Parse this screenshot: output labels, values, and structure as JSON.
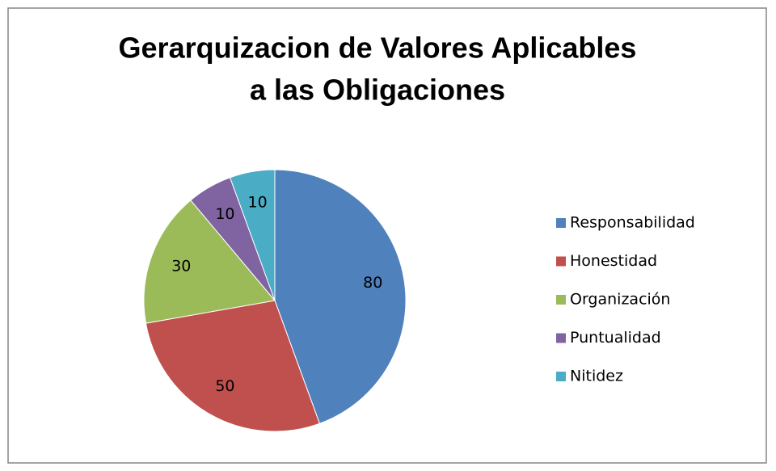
{
  "chart_data": {
    "type": "pie",
    "title": [
      "Gerarquizacion de Valores Aplicables",
      "a las Obligaciones"
    ],
    "categories": [
      "Responsabilidad",
      "Honestidad",
      "Organización",
      "Puntualidad",
      "Nitidez"
    ],
    "values": [
      80,
      50,
      30,
      10,
      10
    ],
    "colors": [
      "#4f81bd",
      "#c0504d",
      "#9bbb59",
      "#8064a2",
      "#4bacc6"
    ],
    "legend": "right"
  }
}
